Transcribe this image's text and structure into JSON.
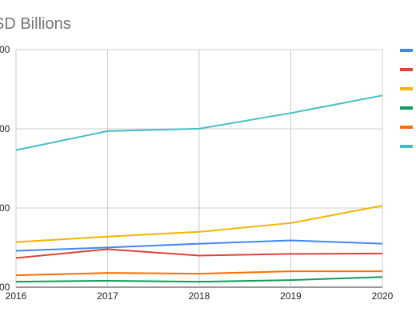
{
  "chart_data": {
    "type": "line",
    "title": "SD Billions",
    "xlabel": "",
    "ylabel": "",
    "x": [
      "2016",
      "2017",
      "2018",
      "2019",
      "2020"
    ],
    "y_tick_labels": [
      "00",
      "00",
      "00",
      "00"
    ],
    "ylim": [
      0,
      1000
    ],
    "y_ticks": [
      0,
      333.3,
      666.7,
      1000
    ],
    "grid": true,
    "legend_position": "right",
    "series": [
      {
        "color": "#4285f4",
        "values": [
          153,
          167,
          183,
          197,
          183
        ]
      },
      {
        "color": "#db4437",
        "values": [
          123,
          160,
          133,
          140,
          142
        ]
      },
      {
        "color": "#f4b400",
        "values": [
          190,
          213,
          233,
          270,
          343
        ]
      },
      {
        "color": "#0f9d58",
        "values": [
          23,
          27,
          23,
          30,
          43
        ]
      },
      {
        "color": "#ff6d01",
        "values": [
          50,
          60,
          57,
          67,
          67
        ]
      },
      {
        "color": "#46bdc6",
        "values": [
          577,
          657,
          667,
          733,
          807
        ]
      }
    ]
  }
}
